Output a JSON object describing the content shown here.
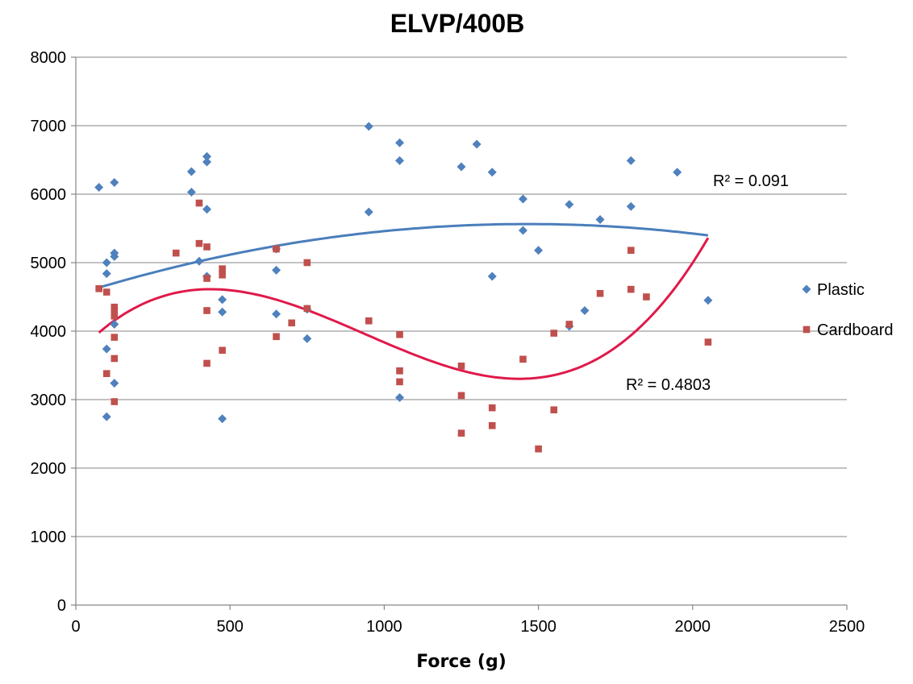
{
  "chart_data": {
    "type": "scatter",
    "title": "ELVP/400B",
    "xlabel": "Force (g)",
    "ylabel": "",
    "xlim": [
      0,
      2500
    ],
    "ylim": [
      0,
      8000
    ],
    "xticks": [
      0,
      500,
      1000,
      1500,
      2000,
      2500
    ],
    "yticks": [
      0,
      1000,
      2000,
      3000,
      4000,
      5000,
      6000,
      7000,
      8000
    ],
    "grid": "horizontal",
    "legend_position": "right",
    "series": [
      {
        "name": "Plastic",
        "color": "#4f81bd",
        "marker": "diamond",
        "points": [
          [
            75,
            6100
          ],
          [
            100,
            5000
          ],
          [
            100,
            4840
          ],
          [
            100,
            3740
          ],
          [
            100,
            2750
          ],
          [
            125,
            6170
          ],
          [
            125,
            5140
          ],
          [
            125,
            5090
          ],
          [
            125,
            4100
          ],
          [
            125,
            3240
          ],
          [
            375,
            6330
          ],
          [
            375,
            6030
          ],
          [
            400,
            5020
          ],
          [
            425,
            6550
          ],
          [
            425,
            6470
          ],
          [
            425,
            5780
          ],
          [
            425,
            4800
          ],
          [
            475,
            4460
          ],
          [
            475,
            4280
          ],
          [
            475,
            2720
          ],
          [
            650,
            5200
          ],
          [
            650,
            4890
          ],
          [
            650,
            4250
          ],
          [
            750,
            4320
          ],
          [
            750,
            3890
          ],
          [
            950,
            6990
          ],
          [
            950,
            5740
          ],
          [
            1050,
            6750
          ],
          [
            1050,
            6490
          ],
          [
            1050,
            3030
          ],
          [
            1250,
            6400
          ],
          [
            1300,
            6730
          ],
          [
            1350,
            6320
          ],
          [
            1350,
            4800
          ],
          [
            1450,
            5930
          ],
          [
            1450,
            5470
          ],
          [
            1500,
            5180
          ],
          [
            1600,
            5850
          ],
          [
            1600,
            4070
          ],
          [
            1650,
            4300
          ],
          [
            1700,
            5630
          ],
          [
            1800,
            6490
          ],
          [
            1800,
            5820
          ],
          [
            1950,
            6320
          ],
          [
            2050,
            4450
          ]
        ],
        "trendline": {
          "type": "polynomial",
          "r2_label": "R² = 0.091",
          "color": "#4a7ebb",
          "from": 75,
          "to": 2050
        }
      },
      {
        "name": "Cardboard",
        "color": "#c0504d",
        "marker": "square",
        "points": [
          [
            75,
            4620
          ],
          [
            100,
            4570
          ],
          [
            100,
            3380
          ],
          [
            125,
            4350
          ],
          [
            125,
            4300
          ],
          [
            125,
            4220
          ],
          [
            125,
            3910
          ],
          [
            125,
            3600
          ],
          [
            125,
            2970
          ],
          [
            325,
            5140
          ],
          [
            400,
            5870
          ],
          [
            400,
            5280
          ],
          [
            425,
            5230
          ],
          [
            425,
            4770
          ],
          [
            425,
            4300
          ],
          [
            425,
            3530
          ],
          [
            475,
            4910
          ],
          [
            475,
            4820
          ],
          [
            475,
            3720
          ],
          [
            650,
            5200
          ],
          [
            650,
            3920
          ],
          [
            700,
            4120
          ],
          [
            750,
            5000
          ],
          [
            750,
            4330
          ],
          [
            950,
            4150
          ],
          [
            1050,
            3950
          ],
          [
            1050,
            3420
          ],
          [
            1050,
            3260
          ],
          [
            1250,
            3490
          ],
          [
            1250,
            3060
          ],
          [
            1250,
            2510
          ],
          [
            1350,
            2880
          ],
          [
            1350,
            2620
          ],
          [
            1450,
            3590
          ],
          [
            1500,
            2280
          ],
          [
            1550,
            3970
          ],
          [
            1550,
            2850
          ],
          [
            1600,
            4100
          ],
          [
            1700,
            4550
          ],
          [
            1800,
            5180
          ],
          [
            1800,
            4610
          ],
          [
            1850,
            4500
          ],
          [
            2050,
            3840
          ]
        ],
        "trendline": {
          "type": "polynomial",
          "r2_label": "R² = 0.4803",
          "color": "#e0194a",
          "from": 75,
          "to": 2050
        }
      }
    ]
  }
}
